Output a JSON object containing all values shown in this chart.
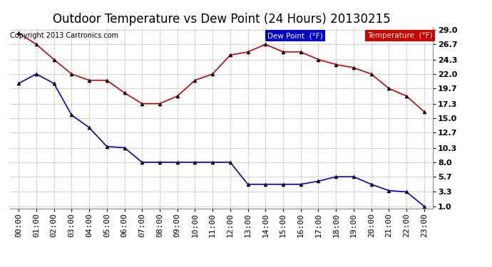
{
  "title": "Outdoor Temperature vs Dew Point (24 Hours) 20130215",
  "copyright": "Copyright 2013 Cartronics.com",
  "background_color": "#ffffff",
  "plot_bg_color": "#ffffff",
  "grid_color": "#aaaaaa",
  "x_labels": [
    "00:00",
    "01:00",
    "02:00",
    "03:00",
    "04:00",
    "05:00",
    "06:00",
    "07:00",
    "08:00",
    "09:00",
    "10:00",
    "11:00",
    "12:00",
    "13:00",
    "14:00",
    "15:00",
    "16:00",
    "17:00",
    "18:00",
    "19:00",
    "20:00",
    "21:00",
    "22:00",
    "23:00"
  ],
  "y_ticks": [
    1.0,
    3.3,
    5.7,
    8.0,
    10.3,
    12.7,
    15.0,
    17.3,
    19.7,
    22.0,
    24.3,
    26.7,
    29.0
  ],
  "temperature": [
    28.5,
    26.7,
    24.3,
    22.0,
    21.0,
    21.0,
    19.0,
    17.3,
    17.3,
    18.5,
    21.0,
    22.0,
    25.0,
    25.5,
    26.7,
    25.5,
    25.5,
    24.3,
    23.5,
    23.0,
    22.0,
    19.7,
    18.5,
    16.0
  ],
  "dew_point": [
    20.5,
    22.0,
    20.5,
    15.5,
    13.5,
    10.5,
    10.3,
    8.0,
    8.0,
    8.0,
    8.0,
    8.0,
    8.0,
    4.5,
    4.5,
    4.5,
    4.5,
    5.0,
    5.7,
    5.7,
    4.5,
    3.5,
    3.3,
    1.0
  ],
  "temp_color": "#cc0000",
  "dew_color": "#0000cc",
  "marker_color": "#000000",
  "legend_dew_bg": "#0000cc",
  "legend_temp_bg": "#cc0000",
  "ylim_min": 1.0,
  "ylim_max": 29.0,
  "title_fontsize": 12,
  "tick_fontsize": 8,
  "copyright_fontsize": 7
}
